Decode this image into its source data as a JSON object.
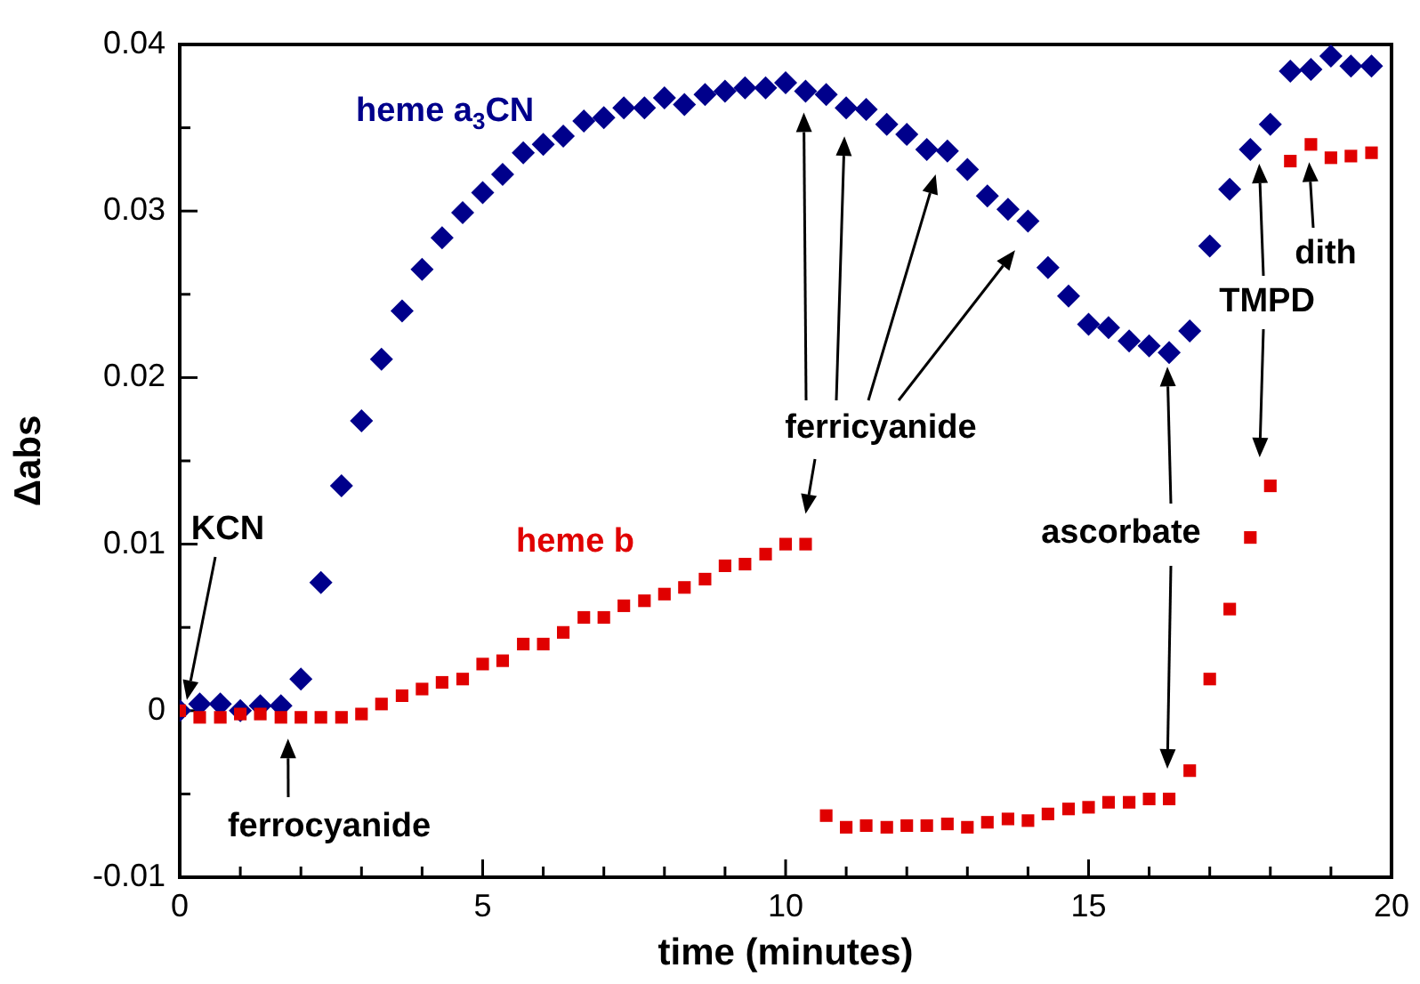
{
  "chart_data": {
    "type": "scatter",
    "xlabel": "time (minutes)",
    "ylabel": "Δabs",
    "x": [
      0,
      0.33,
      0.67,
      1,
      1.33,
      1.67,
      2,
      2.33,
      2.67,
      3,
      3.33,
      3.67,
      4,
      4.33,
      4.67,
      5,
      5.33,
      5.67,
      6,
      6.33,
      6.67,
      7,
      7.33,
      7.67,
      8,
      8.33,
      8.67,
      9,
      9.33,
      9.67,
      10,
      10.33,
      10.67,
      11,
      11.33,
      11.67,
      12,
      12.33,
      12.67,
      13,
      13.33,
      13.67,
      14,
      14.33,
      14.67,
      15,
      15.33,
      15.67,
      16,
      16.33,
      16.67,
      17,
      17.33,
      17.67,
      18,
      18.33,
      18.67,
      19,
      19.33,
      19.67
    ],
    "series": [
      {
        "name": "heme a$_{3}$CN",
        "color": "#00008b",
        "marker": "diamond",
        "values": [
          0,
          0.0004,
          0.0004,
          0,
          0.0003,
          0.0003,
          0.0019,
          0.0077,
          0.0135,
          0.0174,
          0.0211,
          0.024,
          0.0265,
          0.0284,
          0.0299,
          0.0311,
          0.0322,
          0.0335,
          0.034,
          0.0345,
          0.0354,
          0.0356,
          0.0362,
          0.0362,
          0.0368,
          0.0364,
          0.037,
          0.0372,
          0.0374,
          0.0374,
          0.0377,
          0.0372,
          0.037,
          0.0362,
          0.0361,
          0.0352,
          0.0346,
          0.0337,
          0.0336,
          0.0325,
          0.0309,
          0.0301,
          0.0294,
          0.0266,
          0.0249,
          0.0232,
          0.023,
          0.0222,
          0.0219,
          0.0215,
          0.0228,
          0.0279,
          0.0313,
          0.0337,
          0.0352,
          0.0384,
          0.0385,
          0.0393,
          0.0387,
          0.0387
        ]
      },
      {
        "name": "heme b",
        "color": "#e00000",
        "marker": "square",
        "values": [
          0,
          -0.0004,
          -0.0004,
          -0.0002,
          -0.0002,
          -0.0004,
          -0.0004,
          -0.0004,
          -0.0004,
          -0.0002,
          0.0004,
          0.0009,
          0.0013,
          0.0017,
          0.0019,
          0.0028,
          0.003,
          0.004,
          0.004,
          0.0047,
          0.0056,
          0.0056,
          0.0063,
          0.0066,
          0.007,
          0.0074,
          0.0079,
          0.0087,
          0.0088,
          0.0094,
          0.01,
          0.01,
          -0.0063,
          -0.007,
          -0.0069,
          -0.007,
          -0.0069,
          -0.0069,
          -0.0068,
          -0.007,
          -0.0067,
          -0.0065,
          -0.0066,
          -0.0062,
          -0.0059,
          -0.0058,
          -0.0055,
          -0.0055,
          -0.0053,
          -0.0053,
          -0.0036,
          0.0019,
          0.0061,
          0.0104,
          0.0135,
          0.033,
          0.034,
          0.0332,
          0.0333,
          0.0335
        ]
      }
    ],
    "xlim": [
      0,
      20
    ],
    "xticks": [
      0,
      {
        "value": 1,
        "label": null
      },
      {
        "value": 2,
        "label": null
      },
      {
        "value": 3,
        "label": null
      },
      {
        "value": 4,
        "label": null
      },
      5,
      {
        "value": 6,
        "label": null
      },
      {
        "value": 7,
        "label": null
      },
      {
        "value": 8,
        "label": null
      },
      {
        "value": 9,
        "label": null
      },
      10,
      {
        "value": 11,
        "label": null
      },
      {
        "value": 12,
        "label": null
      },
      {
        "value": 13,
        "label": null
      },
      {
        "value": 14,
        "label": null
      },
      15,
      {
        "value": 16,
        "label": null
      },
      {
        "value": 17,
        "label": null
      },
      {
        "value": 18,
        "label": null
      },
      {
        "value": 19,
        "label": null
      },
      20
    ],
    "ylim": [
      -0.01,
      0.04
    ],
    "yticks": [
      -0.01,
      {
        "value": -0.005,
        "label": null
      },
      0,
      {
        "value": 0.005,
        "label": null
      },
      0.01,
      {
        "value": 0.015,
        "label": null
      },
      0.02,
      {
        "value": 0.025,
        "label": null
      },
      0.03,
      {
        "value": 0.035,
        "label": null
      },
      0.04
    ],
    "annotations": [
      "KCN",
      "ferrocyanide",
      "ferricyanide",
      "ascorbate",
      "TMPD",
      "dith"
    ],
    "grid": false,
    "legend": false
  }
}
